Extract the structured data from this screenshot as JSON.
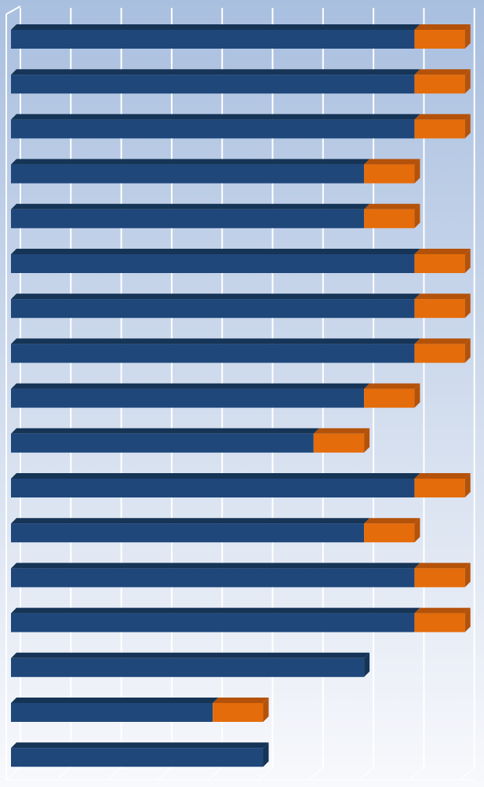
{
  "colors": {
    "background_top": "#a9bfdf",
    "background_bottom": "#f8f9fc",
    "gridline": "#ffffff",
    "series_primary": "#1f477a",
    "series_primary_top": "#163456",
    "series_secondary": "#e46c0a",
    "series_secondary_top": "#b4520a"
  },
  "chart_data": {
    "type": "bar",
    "orientation": "horizontal",
    "stacked": true,
    "three_d": true,
    "grid": true,
    "legend": "none",
    "xlim": [
      0,
      9
    ],
    "categories": [
      "",
      "",
      "",
      "",
      "",
      "",
      "",
      "",
      "",
      "",
      "",
      "",
      "",
      "",
      "",
      "",
      ""
    ],
    "series": [
      {
        "values": [
          8,
          8,
          8,
          7,
          7,
          8,
          8,
          8,
          7,
          6,
          8,
          7,
          8,
          8,
          7,
          4,
          5
        ]
      },
      {
        "values": [
          1,
          1,
          1,
          1,
          1,
          1,
          1,
          1,
          1,
          1,
          1,
          1,
          1,
          1,
          0,
          1,
          0
        ]
      }
    ]
  }
}
